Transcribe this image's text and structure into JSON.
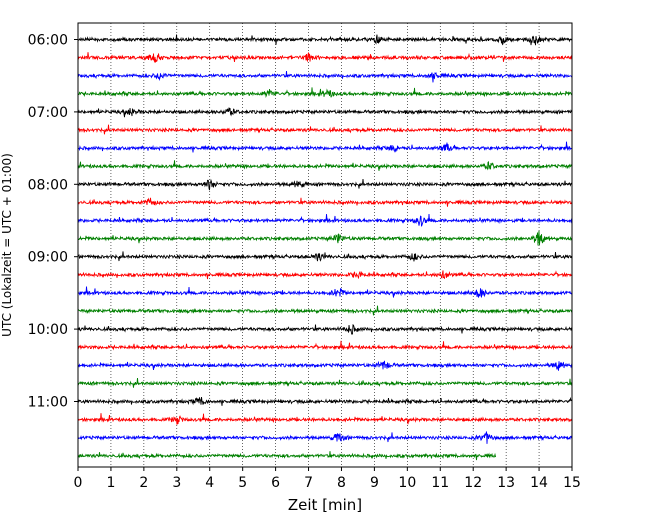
{
  "chart_data": {
    "type": "line",
    "subtype": "helicorder",
    "xlabel": "Zeit  [min]",
    "ylabel": "UTC (Lokalzeit = UTC + 01:00)",
    "x_ticks": [
      "0",
      "1",
      "2",
      "3",
      "4",
      "5",
      "6",
      "7",
      "8",
      "9",
      "10",
      "11",
      "12",
      "13",
      "14",
      "15"
    ],
    "xlim": [
      0,
      15
    ],
    "y_ticks": [
      "06:00",
      "07:00",
      "08:00",
      "09:00",
      "10:00",
      "11:00"
    ],
    "trace_interval_min": 15,
    "trace_count": 24,
    "last_trace_end_min": 12.7,
    "grid": "vertical dotted at each minute",
    "trace_colors": [
      "#000000",
      "#ff0000",
      "#0000ff",
      "#008000"
    ],
    "events": [
      {
        "trace": 0,
        "x_min": 9.1,
        "amp": 4
      },
      {
        "trace": 0,
        "x_min": 12.9,
        "amp": 4
      },
      {
        "trace": 0,
        "x_min": 13.9,
        "amp": 5
      },
      {
        "trace": 1,
        "x_min": 2.3,
        "amp": 5
      },
      {
        "trace": 1,
        "x_min": 7.0,
        "amp": 4
      },
      {
        "trace": 2,
        "x_min": 2.5,
        "amp": 4
      },
      {
        "trace": 2,
        "x_min": 10.8,
        "amp": 4
      },
      {
        "trace": 3,
        "x_min": 5.8,
        "amp": 4
      },
      {
        "trace": 3,
        "x_min": 7.6,
        "amp": 4
      },
      {
        "trace": 4,
        "x_min": 1.6,
        "amp": 4
      },
      {
        "trace": 4,
        "x_min": 4.6,
        "amp": 4
      },
      {
        "trace": 6,
        "x_min": 9.6,
        "amp": 4
      },
      {
        "trace": 6,
        "x_min": 11.2,
        "amp": 4
      },
      {
        "trace": 7,
        "x_min": 12.5,
        "amp": 4
      },
      {
        "trace": 8,
        "x_min": 4.0,
        "amp": 5
      },
      {
        "trace": 8,
        "x_min": 6.7,
        "amp": 4
      },
      {
        "trace": 9,
        "x_min": 2.2,
        "amp": 4
      },
      {
        "trace": 10,
        "x_min": 10.4,
        "amp": 6
      },
      {
        "trace": 11,
        "x_min": 7.9,
        "amp": 5
      },
      {
        "trace": 11,
        "x_min": 14.0,
        "amp": 9
      },
      {
        "trace": 12,
        "x_min": 7.3,
        "amp": 4
      },
      {
        "trace": 12,
        "x_min": 10.2,
        "amp": 4
      },
      {
        "trace": 13,
        "x_min": 8.5,
        "amp": 4
      },
      {
        "trace": 13,
        "x_min": 11.1,
        "amp": 4
      },
      {
        "trace": 14,
        "x_min": 7.9,
        "amp": 6
      },
      {
        "trace": 14,
        "x_min": 12.2,
        "amp": 6
      },
      {
        "trace": 16,
        "x_min": 8.3,
        "amp": 5
      },
      {
        "trace": 18,
        "x_min": 9.3,
        "amp": 5
      },
      {
        "trace": 18,
        "x_min": 14.6,
        "amp": 5
      },
      {
        "trace": 20,
        "x_min": 3.7,
        "amp": 5
      },
      {
        "trace": 21,
        "x_min": 3.0,
        "amp": 4
      },
      {
        "trace": 22,
        "x_min": 7.9,
        "amp": 6
      },
      {
        "trace": 22,
        "x_min": 12.4,
        "amp": 6
      }
    ]
  }
}
